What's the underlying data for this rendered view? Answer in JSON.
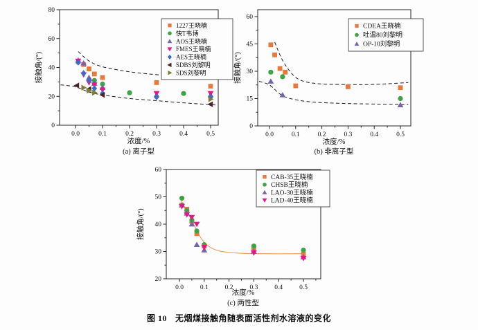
{
  "figure": {
    "caption_label": "图 10",
    "caption_text": "无烟煤接触角随表面活性剂水溶液的变化"
  },
  "palette": {
    "orange": "#E8793B",
    "green": "#3DA345",
    "purple": "#7763AB",
    "magenta": "#E8148C",
    "blue": "#3E6BC5",
    "maroon": "#4B2427",
    "olive": "#7E7D35",
    "axis": "#222222",
    "dashed": "#1a1a1a",
    "fit": "#E8A05A"
  },
  "chart_data": [
    {
      "id": "a",
      "type": "scatter",
      "title": "(a) 离子型",
      "xlabel": "浓度/%",
      "ylabel": "接触角/(°)",
      "xlim": [
        -0.06,
        0.53
      ],
      "ylim": [
        0,
        80
      ],
      "xticks": [
        0,
        0.1,
        0.2,
        0.3,
        0.4,
        0.5
      ],
      "xminor": [
        0.05,
        0.15,
        0.25,
        0.35,
        0.45
      ],
      "yticks": [
        0,
        20,
        40,
        60,
        80
      ],
      "yminor": [
        10,
        30,
        50,
        70
      ],
      "legend_position": "top-right",
      "series": [
        {
          "name": "1227王晓楠",
          "marker": "square",
          "color": "orange",
          "points": [
            [
              0.01,
              44
            ],
            [
              0.03,
              42
            ],
            [
              0.05,
              39
            ],
            [
              0.07,
              35.5
            ],
            [
              0.1,
              33
            ],
            [
              0.3,
              29.5
            ],
            [
              0.5,
              27
            ]
          ]
        },
        {
          "name": "快T韦博",
          "marker": "circle",
          "color": "green",
          "points": [
            [
              0.07,
              31
            ],
            [
              0.1,
              28.5
            ],
            [
              0.2,
              22.5
            ],
            [
              0.4,
              22
            ]
          ]
        },
        {
          "name": "AOS王晓楠",
          "marker": "triangle-up",
          "color": "purple",
          "points": [
            [
              0.01,
              45
            ],
            [
              0.03,
              43
            ],
            [
              0.05,
              33
            ],
            [
              0.07,
              29
            ],
            [
              0.1,
              26
            ],
            [
              0.3,
              21
            ],
            [
              0.5,
              21
            ]
          ]
        },
        {
          "name": "FMES王晓楠",
          "marker": "triangle-down",
          "color": "magenta",
          "points": [
            [
              0.01,
              44.5
            ],
            [
              0.03,
              35
            ],
            [
              0.05,
              29.5
            ],
            [
              0.07,
              28
            ],
            [
              0.1,
              24.5
            ],
            [
              0.3,
              22
            ],
            [
              0.5,
              22
            ]
          ]
        },
        {
          "name": "AES王晓楠",
          "marker": "diamond",
          "color": "blue",
          "points": [
            [
              0.01,
              43.5
            ],
            [
              0.03,
              36
            ],
            [
              0.05,
              31
            ],
            [
              0.07,
              25.5
            ],
            [
              0.1,
              22
            ],
            [
              0.3,
              19.5
            ],
            [
              0.5,
              19.5
            ]
          ]
        },
        {
          "name": "SDBS刘黎明",
          "marker": "triangle-left",
          "color": "maroon",
          "points": [
            [
              0.005,
              27.5
            ],
            [
              0.05,
              25
            ],
            [
              0.1,
              21
            ],
            [
              0.5,
              14.5
            ]
          ]
        },
        {
          "name": "SDS刘黎明",
          "marker": "triangle-right",
          "color": "olive",
          "points": [
            [
              0.03,
              26
            ],
            [
              0.05,
              24
            ],
            [
              0.07,
              22.5
            ],
            [
              0.5,
              18
            ]
          ]
        }
      ],
      "envelopes": [
        [
          [
            0.01,
            51
          ],
          [
            0.05,
            44.5
          ],
          [
            0.1,
            40.5
          ],
          [
            0.2,
            37
          ],
          [
            0.3,
            35
          ],
          [
            0.4,
            33.5
          ],
          [
            0.52,
            32
          ]
        ],
        [
          [
            -0.055,
            28
          ],
          [
            0,
            26.5
          ],
          [
            0.05,
            23
          ],
          [
            0.1,
            21
          ],
          [
            0.2,
            18.5
          ],
          [
            0.3,
            17
          ],
          [
            0.4,
            15.5
          ],
          [
            0.52,
            14
          ]
        ]
      ]
    },
    {
      "id": "b",
      "type": "scatter",
      "title": "(b) 非离子型",
      "xlabel": "浓度/%",
      "ylabel": "接触角/(°)",
      "xlim": [
        -0.045,
        0.54
      ],
      "ylim": [
        0,
        63
      ],
      "xticks": [
        0,
        0.1,
        0.2,
        0.3,
        0.4,
        0.5
      ],
      "xminor": [
        0.05,
        0.15,
        0.25,
        0.35,
        0.45
      ],
      "yticks": [
        0,
        15,
        30,
        45,
        60
      ],
      "yminor": [
        7.5,
        22.5,
        37.5,
        52.5
      ],
      "legend_position": "top-right",
      "series": [
        {
          "name": "CDEA王晓楠",
          "marker": "square",
          "color": "orange",
          "points": [
            [
              0.005,
              44.5
            ],
            [
              0.02,
              39
            ],
            [
              0.04,
              31.5
            ],
            [
              0.06,
              29.5
            ],
            [
              0.1,
              22
            ],
            [
              0.3,
              21.5
            ],
            [
              0.5,
              21
            ]
          ]
        },
        {
          "name": "吐温80刘黎明",
          "marker": "circle",
          "color": "green",
          "points": [
            [
              0.005,
              29.5
            ],
            [
              0.05,
              27
            ],
            [
              0.5,
              15
            ]
          ]
        },
        {
          "name": "OP-10刘黎明",
          "marker": "triangle-up",
          "color": "purple",
          "points": [
            [
              0.005,
              24.5
            ],
            [
              0.05,
              17
            ],
            [
              0.5,
              11.5
            ]
          ]
        }
      ],
      "envelopes": [
        [
          [
            0.02,
            46
          ],
          [
            0.05,
            36
          ],
          [
            0.09,
            28
          ],
          [
            0.13,
            24.5
          ],
          [
            0.2,
            23
          ],
          [
            0.3,
            22.7
          ],
          [
            0.4,
            22.8
          ],
          [
            0.53,
            23.8
          ]
        ],
        [
          [
            -0.04,
            24.5
          ],
          [
            0,
            22.5
          ],
          [
            0.04,
            17.5
          ],
          [
            0.08,
            15
          ],
          [
            0.15,
            13.3
          ],
          [
            0.25,
            12.5
          ],
          [
            0.4,
            12
          ],
          [
            0.53,
            11.7
          ]
        ]
      ]
    },
    {
      "id": "c",
      "type": "scatter",
      "title": "(c) 两性型",
      "xlabel": "浓度/%",
      "ylabel": "接触角/(°)",
      "xlim": [
        -0.055,
        0.57
      ],
      "ylim": [
        20,
        60
      ],
      "xticks": [
        0,
        0.1,
        0.2,
        0.3,
        0.4,
        0.5
      ],
      "xminor": [
        0.05,
        0.15,
        0.25,
        0.35,
        0.45,
        0.55
      ],
      "yticks": [
        20,
        30,
        40,
        50,
        60
      ],
      "yminor": [
        25,
        35,
        45,
        55
      ],
      "legend_position": "top-right",
      "series": [
        {
          "name": "CAB-35王晓楠",
          "marker": "square",
          "color": "orange",
          "points": [
            [
              0.01,
              47
            ],
            [
              0.03,
              45.5
            ],
            [
              0.05,
              41
            ],
            [
              0.07,
              36.5
            ],
            [
              0.1,
              32
            ],
            [
              0.3,
              31
            ],
            [
              0.5,
              29
            ]
          ]
        },
        {
          "name": "CHSB王晓楠",
          "marker": "circle",
          "color": "green",
          "points": [
            [
              0.01,
              49.5
            ],
            [
              0.03,
              45
            ],
            [
              0.05,
              41.5
            ],
            [
              0.07,
              37.5
            ],
            [
              0.1,
              32.5
            ],
            [
              0.3,
              32
            ],
            [
              0.5,
              30.5
            ]
          ]
        },
        {
          "name": "LAO-30王晓楠",
          "marker": "triangle-up",
          "color": "purple",
          "points": [
            [
              0.01,
              47
            ],
            [
              0.03,
              44
            ],
            [
              0.05,
              40
            ],
            [
              0.07,
              32.5
            ],
            [
              0.1,
              30.5
            ],
            [
              0.3,
              30
            ],
            [
              0.5,
              28
            ]
          ]
        },
        {
          "name": "LAD-40王晓楠",
          "marker": "triangle-down",
          "color": "magenta",
          "points": [
            [
              0.01,
              46.5
            ],
            [
              0.03,
              43.5
            ],
            [
              0.05,
              42.5
            ],
            [
              0.07,
              40
            ],
            [
              0.1,
              31.5
            ],
            [
              0.3,
              29.5
            ],
            [
              0.5,
              27.5
            ]
          ]
        }
      ],
      "fit_curve": [
        [
          0.006,
          48.8
        ],
        [
          0.03,
          44.8
        ],
        [
          0.06,
          39.5
        ],
        [
          0.09,
          34.5
        ],
        [
          0.12,
          31.8
        ],
        [
          0.16,
          30.2
        ],
        [
          0.22,
          29.5
        ],
        [
          0.3,
          29.2
        ],
        [
          0.5,
          29.2
        ]
      ]
    }
  ]
}
